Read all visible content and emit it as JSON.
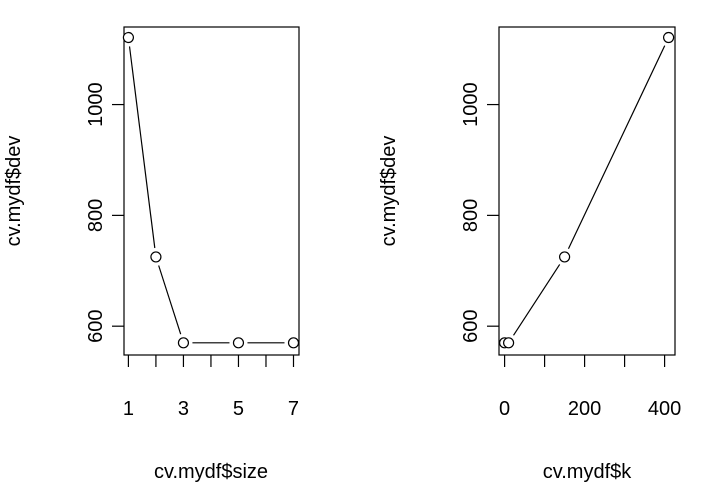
{
  "chart_data": [
    {
      "type": "line",
      "xlabel": "cv.mydf$size",
      "ylabel": "cv.mydf$dev",
      "x": [
        1,
        2,
        3,
        5,
        7
      ],
      "y": [
        1121,
        725,
        570,
        570,
        570
      ],
      "xlim": [
        0.84,
        7.2
      ],
      "ylim": [
        548,
        1140
      ],
      "x_ticks": [
        1,
        2,
        3,
        4,
        5,
        6,
        7
      ],
      "x_tick_labels": [
        "1",
        "",
        "3",
        "",
        "5",
        "",
        "7"
      ],
      "y_ticks": [
        600,
        800,
        1000
      ],
      "y_tick_labels": [
        "600",
        "800",
        "1000"
      ],
      "markers": "open-circle",
      "grid": false
    },
    {
      "type": "line",
      "xlabel": "cv.mydf$k",
      "ylabel": "cv.mydf$dev",
      "x": [
        0,
        10,
        150,
        410
      ],
      "y": [
        570,
        570,
        725,
        1121
      ],
      "xlim": [
        -14,
        426
      ],
      "ylim": [
        548,
        1140
      ],
      "x_ticks": [
        0,
        100,
        200,
        300,
        400
      ],
      "x_tick_labels": [
        "0",
        "",
        "200",
        "",
        "400"
      ],
      "y_ticks": [
        600,
        800,
        1000
      ],
      "y_tick_labels": [
        "600",
        "800",
        "1000"
      ],
      "markers": "open-circle",
      "grid": false
    }
  ]
}
